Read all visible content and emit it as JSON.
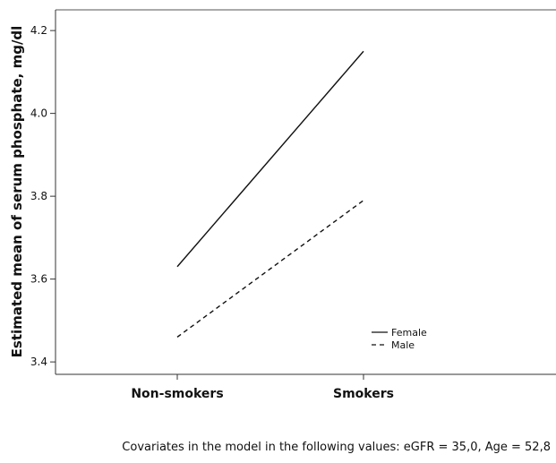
{
  "chart_data": {
    "type": "line",
    "ylabel": "Estimated mean of serum phosphate, mg/dl",
    "xlabel": "",
    "categories": [
      "Non-smokers",
      "Smokers"
    ],
    "y_ticks": [
      "3.4",
      "3.6",
      "3.8",
      "4.0",
      "4.2"
    ],
    "ylim": [
      3.37,
      4.25
    ],
    "grid": false,
    "legend_position": "bottom-right",
    "series": [
      {
        "name": "Female",
        "line_style": "solid",
        "values": [
          3.63,
          4.15
        ]
      },
      {
        "name": "Male",
        "line_style": "dashed",
        "values": [
          3.46,
          3.79
        ]
      }
    ]
  },
  "footnote": "Covariates in the model in the following values: eGFR = 35,0, Age = 52,8"
}
